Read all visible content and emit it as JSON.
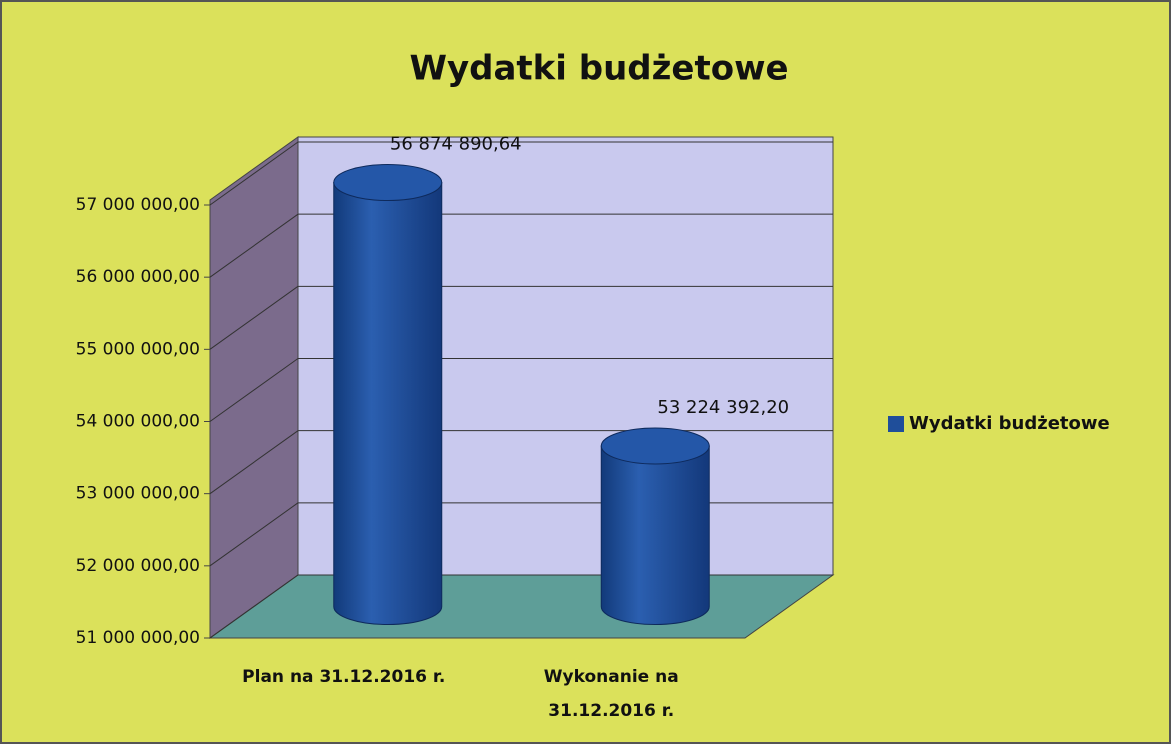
{
  "chart_data": {
    "type": "bar",
    "title": "Wydatki budżetowe",
    "categories": [
      "Plan na 31.12.2016 r.",
      "Wykonanie na 31.12.2016 r."
    ],
    "series": [
      {
        "name": "Wydatki budżetowe",
        "color": "#1f4e9a",
        "values": [
          56874890.64,
          53224392.2
        ],
        "value_labels": [
          "56 874 890,64",
          "53 224 392,20"
        ]
      }
    ],
    "ylim": [
      51000000,
      57000000
    ],
    "yticks": [
      {
        "value": 51000000,
        "label": "51 000 000,00"
      },
      {
        "value": 52000000,
        "label": "52 000 000,00"
      },
      {
        "value": 53000000,
        "label": "53 000 000,00"
      },
      {
        "value": 54000000,
        "label": "54 000 000,00"
      },
      {
        "value": 55000000,
        "label": "55 000 000,00"
      },
      {
        "value": 56000000,
        "label": "56 000 000,00"
      },
      {
        "value": 57000000,
        "label": "57 000 000,00"
      }
    ],
    "grid": true,
    "legend": "right"
  }
}
